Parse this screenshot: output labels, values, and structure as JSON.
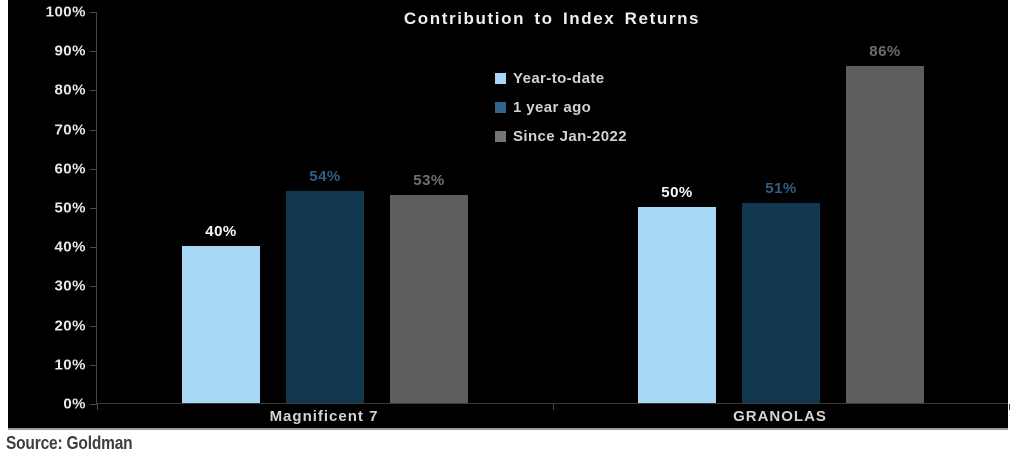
{
  "source_note": "Source: Goldman",
  "panel": {
    "background": "#000000",
    "page_background": "#ffffff",
    "axis_color": "#434343",
    "text_color": "#e9e9e9"
  },
  "chart_data": {
    "type": "bar",
    "title": "Contribution to Index Returns",
    "categories": [
      "Magnificent 7",
      "GRANOLAS"
    ],
    "series": [
      {
        "name": "Year-to-date",
        "values": [
          40,
          50
        ],
        "color": "#a8d8f5",
        "label_color": "#f7fafc",
        "legend_color": "#a8d8f5"
      },
      {
        "name": "1 year ago",
        "values": [
          54,
          51
        ],
        "color": "#123750",
        "label_color": "#2f5f85",
        "legend_color": "#35638a"
      },
      {
        "name": "Since Jan-2022",
        "values": [
          53,
          86
        ],
        "color": "#5d5d5d",
        "label_color": "#6e6e6e",
        "legend_color": "#757575"
      }
    ],
    "value_suffix": "%",
    "ylim": [
      0,
      100
    ],
    "y_tick_step": 10,
    "y_ticks": [
      "100%",
      "90%",
      "80%",
      "70%",
      "60%",
      "50%",
      "40%",
      "30%",
      "20%",
      "10%",
      "0%"
    ],
    "grid": false,
    "legend_position": "upper-center",
    "xlabel": "",
    "ylabel": ""
  }
}
